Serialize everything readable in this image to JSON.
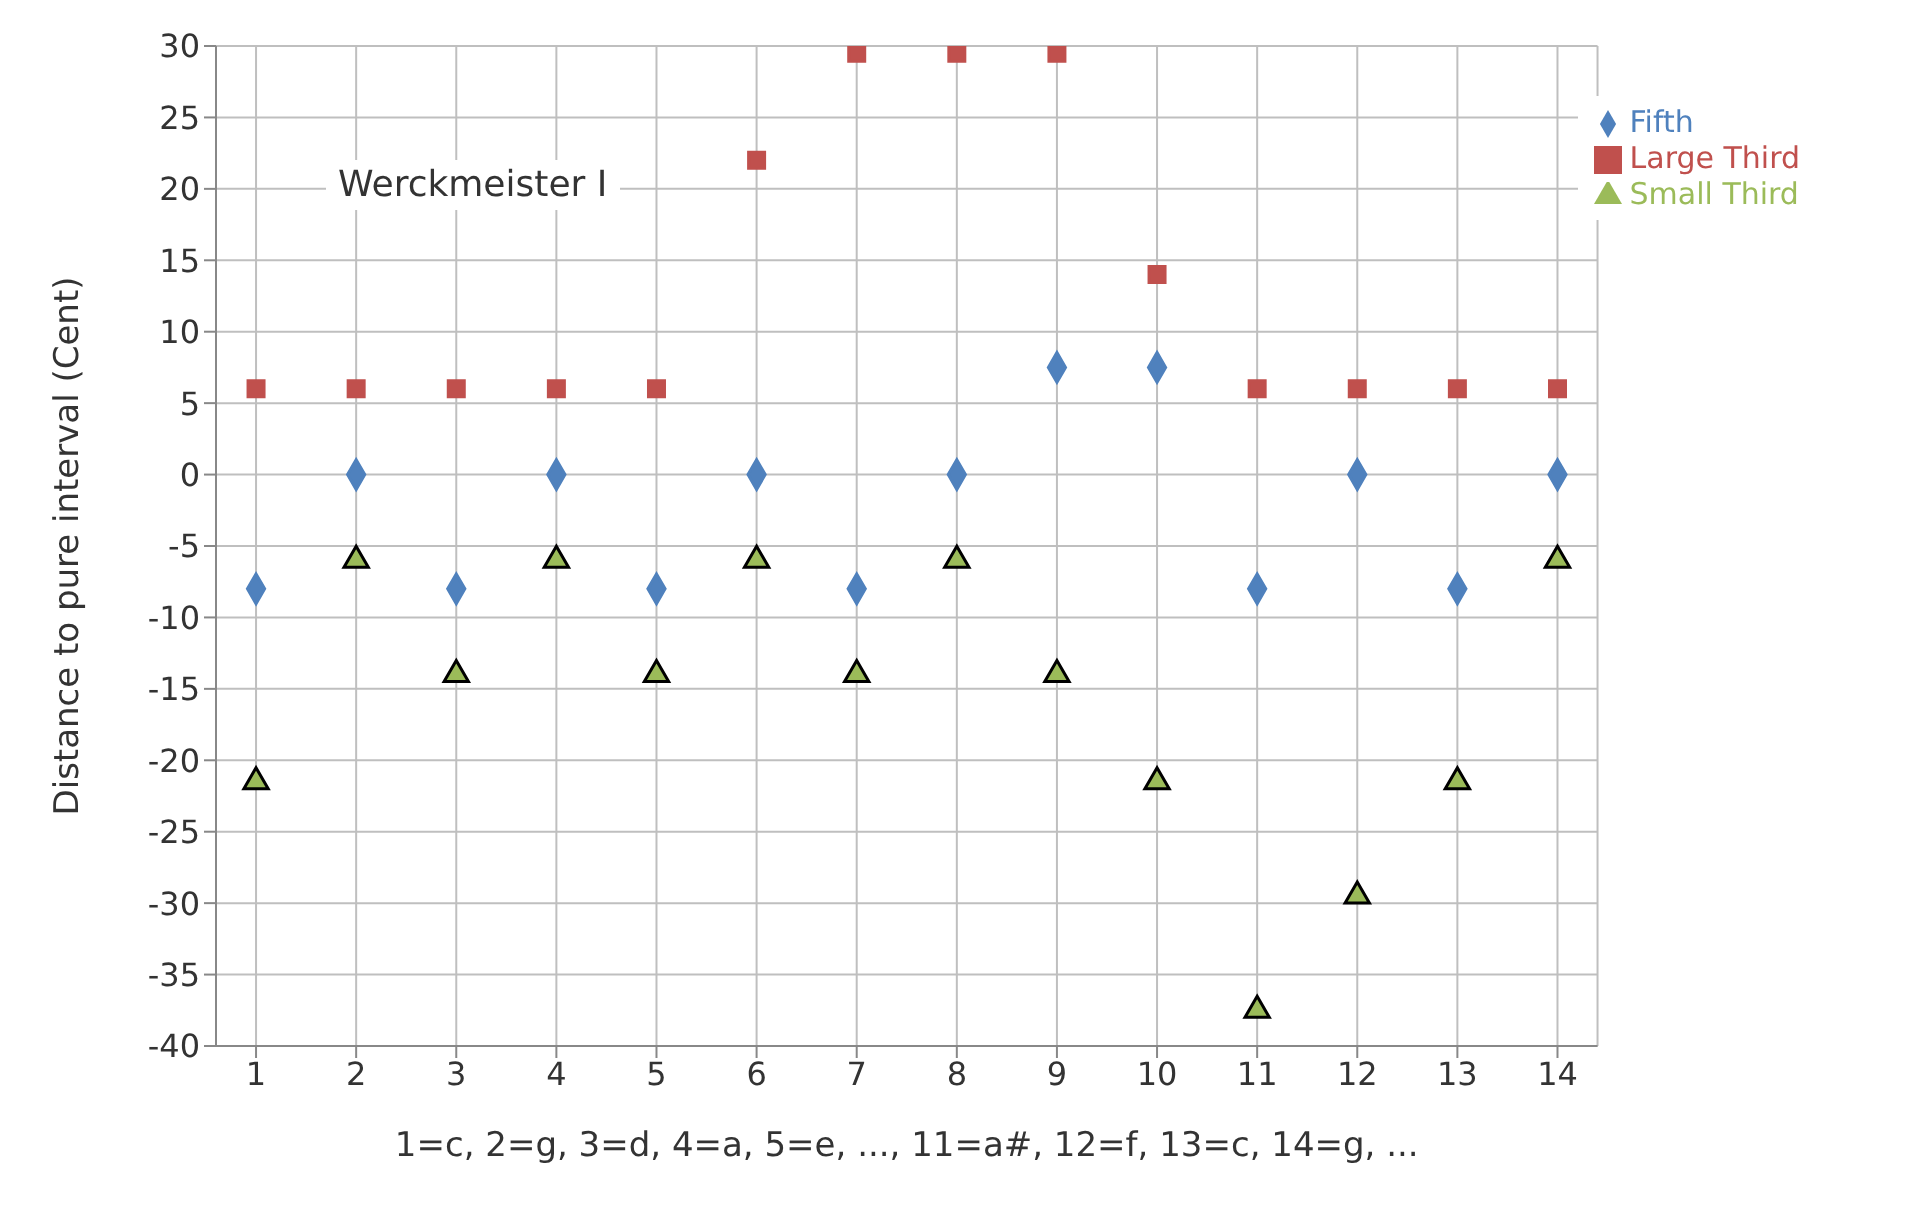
{
  "chart_data": {
    "type": "scatter",
    "ylabel": "Distance to pure interval (Cent)",
    "xlabel": "1=c, 2=g, 3=d, 4=a, 5=e, ..., 11=a#, 12=f, 13=c, 14=g,  ...",
    "annotations": [
      "Werckmeister I"
    ],
    "x": [
      1,
      2,
      3,
      4,
      5,
      6,
      7,
      8,
      9,
      10,
      11,
      12,
      13,
      14
    ],
    "xlim": [
      0.6,
      14.4
    ],
    "xticks": [
      1,
      2,
      3,
      4,
      5,
      6,
      7,
      8,
      9,
      10,
      11,
      12,
      13,
      14
    ],
    "ylim": [
      -40,
      30
    ],
    "yticks": [
      -40,
      -35,
      -30,
      -25,
      -20,
      -15,
      -10,
      -5,
      0,
      5,
      10,
      15,
      20,
      25,
      30
    ],
    "grid": true,
    "legend": "top right",
    "series": [
      {
        "name": "Fifth",
        "color": "#4f81bd",
        "marker": "diamond",
        "values": [
          -8,
          0,
          -8,
          0,
          -8,
          0,
          -8,
          0,
          7.5,
          7.5,
          -8,
          0,
          -8,
          0
        ]
      },
      {
        "name": "Large Third",
        "color": "#c0504d",
        "marker": "square",
        "values": [
          6,
          6,
          6,
          6,
          6,
          22,
          29.5,
          29.5,
          29.5,
          14,
          6,
          6,
          6,
          6
        ]
      },
      {
        "name": "Small Third",
        "color": "#9bbb59",
        "marker": "triangle",
        "values": [
          -21.5,
          -6,
          -14,
          -6,
          -14,
          -6,
          -14,
          -6,
          -14,
          -21.5,
          -37.5,
          -29.5,
          -21.5,
          -6
        ]
      }
    ]
  }
}
